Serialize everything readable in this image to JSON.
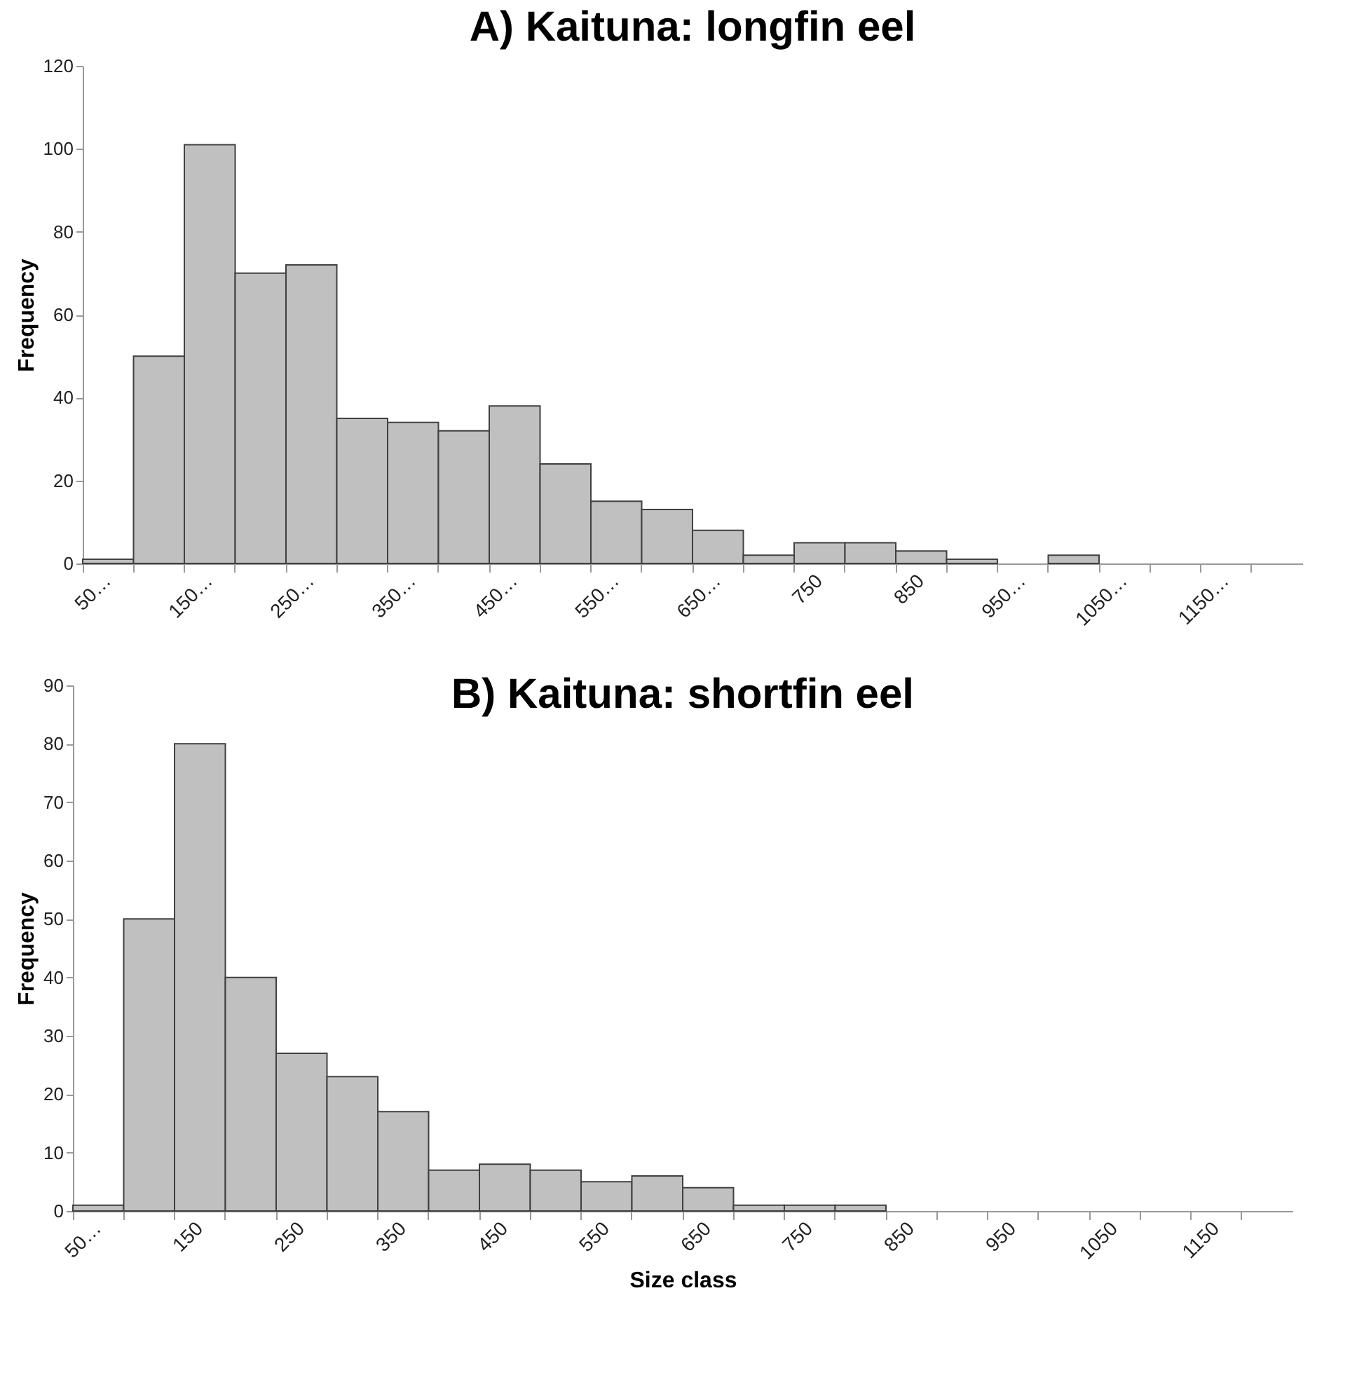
{
  "chart_data": [
    {
      "type": "bar",
      "title": "A) Kaituna: longfin eel",
      "ylabel": "Frequency",
      "categories": [
        "50…",
        null,
        "150…",
        null,
        "250…",
        null,
        "350…",
        null,
        "450…",
        null,
        "550…",
        null,
        "650…",
        null,
        "750",
        null,
        "850",
        null,
        "950…",
        null,
        "1050…",
        null,
        "1150…",
        null
      ],
      "values": [
        1,
        50,
        101,
        70,
        72,
        35,
        34,
        32,
        38,
        24,
        15,
        13,
        8,
        2,
        5,
        5,
        3,
        1,
        0,
        2,
        0,
        0,
        0,
        0
      ],
      "color": "#c0c0c0",
      "ylim": [
        0,
        120
      ],
      "yticks": [
        0,
        20,
        40,
        60,
        80,
        100,
        120
      ],
      "grid": false
    },
    {
      "type": "bar",
      "title": "B) Kaituna: shortfin eel",
      "xlabel": "Size class",
      "ylabel": "Frequency",
      "categories": [
        "50…",
        null,
        "150",
        null,
        "250",
        null,
        "350",
        null,
        "450",
        null,
        "550",
        null,
        "650",
        null,
        "750",
        null,
        "850",
        null,
        "950",
        null,
        "1050",
        null,
        "1150",
        null
      ],
      "values": [
        1,
        50,
        80,
        40,
        27,
        23,
        17,
        7,
        8,
        7,
        5,
        6,
        4,
        1,
        1,
        1,
        0,
        0,
        0,
        0,
        0,
        0,
        0,
        0
      ],
      "color": "#c0c0c0",
      "ylim": [
        0,
        90
      ],
      "yticks": [
        0,
        10,
        20,
        30,
        40,
        50,
        60,
        70,
        80,
        90
      ],
      "grid": false
    }
  ]
}
